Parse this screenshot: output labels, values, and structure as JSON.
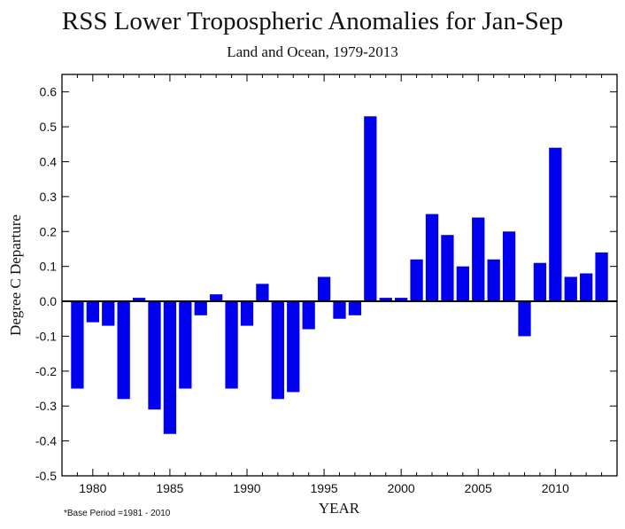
{
  "chart_data": {
    "type": "bar",
    "title": "RSS Lower Tropospheric Anomalies for Jan-Sep",
    "subtitle": "Land and Ocean, 1979-2013",
    "xlabel": "YEAR",
    "ylabel": "Degree C Departure",
    "note": "*Base Period =1981 - 2010",
    "bar_color": "#0000ee",
    "xlim": [
      1978,
      2014
    ],
    "ylim": [
      -0.5,
      0.65
    ],
    "x_ticks": [
      1980,
      1985,
      1990,
      1995,
      2000,
      2005,
      2010
    ],
    "y_ticks": [
      -0.5,
      -0.4,
      -0.3,
      -0.2,
      -0.1,
      0.0,
      0.1,
      0.2,
      0.3,
      0.4,
      0.5,
      0.6
    ],
    "y_tick_labels": [
      "-0.5",
      "-0.4",
      "-0.3",
      "-0.2",
      "-0.1",
      "0.0",
      "0.1",
      "0.2",
      "0.3",
      "0.4",
      "0.5",
      "0.6"
    ],
    "zero_line": true,
    "grid": false,
    "years": [
      1979,
      1980,
      1981,
      1982,
      1983,
      1984,
      1985,
      1986,
      1987,
      1988,
      1989,
      1990,
      1991,
      1992,
      1993,
      1994,
      1995,
      1996,
      1997,
      1998,
      1999,
      2000,
      2001,
      2002,
      2003,
      2004,
      2005,
      2006,
      2007,
      2008,
      2009,
      2010,
      2011,
      2012,
      2013
    ],
    "values": [
      -0.25,
      -0.06,
      -0.07,
      -0.28,
      0.01,
      -0.31,
      -0.38,
      -0.25,
      -0.04,
      0.02,
      -0.25,
      -0.07,
      0.05,
      -0.28,
      -0.26,
      -0.08,
      0.07,
      -0.05,
      -0.04,
      0.53,
      0.01,
      0.01,
      0.12,
      0.25,
      0.19,
      0.1,
      0.24,
      0.12,
      0.2,
      -0.1,
      0.11,
      0.44,
      0.07,
      0.08,
      0.14
    ]
  }
}
